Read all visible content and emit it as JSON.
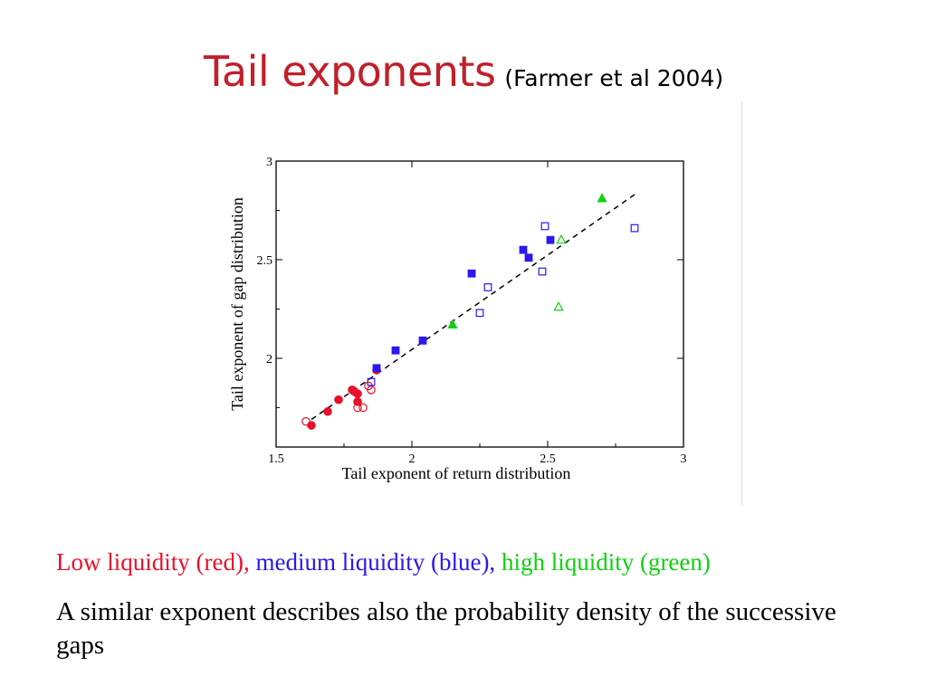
{
  "slide": {
    "title": "Tail exponents",
    "subtitle": "(Farmer et al 2004)"
  },
  "legend": {
    "low": "Low liquidity (red),",
    "medium": "medium liquidity (blue),",
    "high": "high liquidity (green)"
  },
  "note": "A similar exponent describes also the probability density of the successive gaps",
  "colors": {
    "title": "#c0202a",
    "red": "#e8102a",
    "blue": "#2a18ee",
    "green": "#10d010"
  },
  "chart_data": {
    "type": "scatter",
    "xlabel": "Tail exponent of return distribution",
    "ylabel": "Tail exponent of gap distribution",
    "xlim": [
      1.5,
      3
    ],
    "ylim": [
      1.55,
      3
    ],
    "xticks": [
      "1.5",
      "2",
      "2.5",
      "3"
    ],
    "yticks": [
      "2",
      "2.5",
      "3"
    ],
    "fit_line": {
      "x": [
        1.63,
        2.82
      ],
      "y": [
        1.69,
        2.83
      ],
      "style": "dashed"
    },
    "series": [
      {
        "color": "red",
        "marker": "circle",
        "filled": true,
        "points": [
          [
            1.63,
            1.66
          ],
          [
            1.69,
            1.73
          ],
          [
            1.73,
            1.79
          ],
          [
            1.78,
            1.84
          ],
          [
            1.8,
            1.78
          ],
          [
            1.8,
            1.82
          ],
          [
            1.87,
            1.94
          ]
        ]
      },
      {
        "color": "red",
        "marker": "circle",
        "filled": false,
        "points": [
          [
            1.61,
            1.68
          ],
          [
            1.8,
            1.75
          ],
          [
            1.82,
            1.75
          ],
          [
            1.84,
            1.86
          ],
          [
            1.85,
            1.84
          ],
          [
            1.79,
            1.83
          ]
        ]
      },
      {
        "color": "blue",
        "marker": "square",
        "filled": true,
        "points": [
          [
            1.87,
            1.95
          ],
          [
            1.94,
            2.04
          ],
          [
            2.04,
            2.09
          ],
          [
            2.22,
            2.43
          ],
          [
            2.41,
            2.55
          ],
          [
            2.43,
            2.51
          ],
          [
            2.51,
            2.6
          ]
        ]
      },
      {
        "color": "blue",
        "marker": "square",
        "filled": false,
        "points": [
          [
            1.85,
            1.88
          ],
          [
            2.25,
            2.23
          ],
          [
            2.28,
            2.36
          ],
          [
            2.48,
            2.44
          ],
          [
            2.49,
            2.67
          ],
          [
            2.82,
            2.66
          ]
        ]
      },
      {
        "color": "green",
        "marker": "triangle",
        "filled": true,
        "points": [
          [
            2.15,
            2.17
          ],
          [
            2.7,
            2.81
          ]
        ]
      },
      {
        "color": "green",
        "marker": "triangle",
        "filled": false,
        "points": [
          [
            2.54,
            2.26
          ],
          [
            2.55,
            2.6
          ]
        ]
      }
    ]
  }
}
